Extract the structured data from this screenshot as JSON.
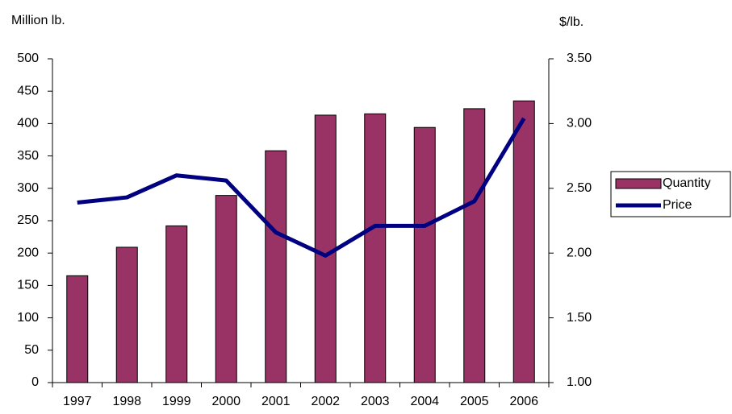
{
  "chart_data": {
    "type": "bar",
    "y_label": "Million lb.",
    "y2_label": "$/lb.",
    "categories": [
      "1997",
      "1998",
      "1999",
      "2000",
      "2001",
      "2002",
      "2003",
      "2004",
      "2005",
      "2006"
    ],
    "series": [
      {
        "name": "Quantity",
        "type": "bar",
        "color": "#993366",
        "values": [
          165,
          209,
          242,
          289,
          358,
          413,
          415,
          394,
          423,
          435
        ]
      },
      {
        "name": "Price",
        "type": "line",
        "axis": "y2",
        "color": "#000080",
        "values": [
          2.39,
          2.43,
          2.6,
          2.56,
          2.16,
          1.98,
          2.21,
          2.21,
          2.4,
          3.04
        ]
      }
    ],
    "ylim": [
      0,
      500
    ],
    "yticks": [
      0,
      50,
      100,
      150,
      200,
      250,
      300,
      350,
      400,
      450,
      500
    ],
    "y2lim": [
      1,
      3.5
    ],
    "y2ticks": [
      {
        "value": 1,
        "label": "1.00"
      },
      {
        "value": 1.5,
        "label": "1.50"
      },
      {
        "value": 2,
        "label": "2.00"
      },
      {
        "value": 2.5,
        "label": "2.50"
      },
      {
        "value": 3,
        "label": "3.00"
      },
      {
        "value": 3.5,
        "label": "3.50"
      }
    ],
    "grid": false,
    "legend": "right"
  }
}
